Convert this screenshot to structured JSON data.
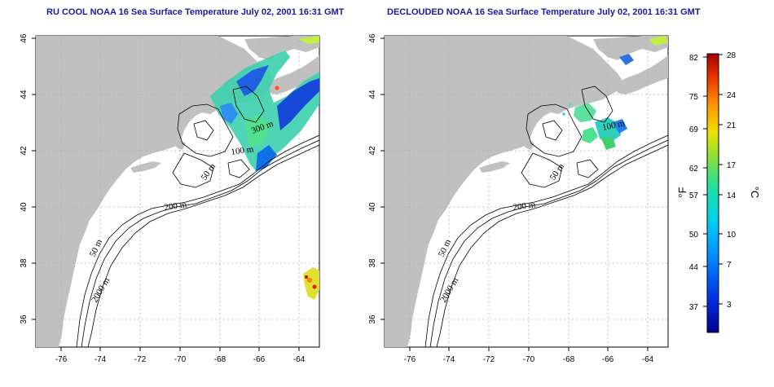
{
  "titles": {
    "left": "RU COOL NOAA 16 Sea Surface Temperature July 02, 2001 16:31 GMT",
    "right": "DECLOUDED NOAA 16 Sea Surface Temperature July 02, 2001 16:31 GMT"
  },
  "axes": {
    "lon_ticks": [
      "-76",
      "-74",
      "-72",
      "-70",
      "-68",
      "-66",
      "-64"
    ],
    "lat_ticks": [
      "36",
      "38",
      "40",
      "42",
      "44",
      "46"
    ],
    "lon_range": [
      -77.0,
      -63.0
    ],
    "lat_range": [
      35.0,
      46.0
    ]
  },
  "contour_labels": {
    "left": [
      "300 m",
      "100 m",
      "50 m",
      "200 m",
      "50 m",
      "2000 m"
    ],
    "right": [
      "100 m",
      "50 m",
      "200 m",
      "50 m",
      "2000 m"
    ]
  },
  "colorbar": {
    "fahrenheit_label": "°F",
    "celsius_label": "°C",
    "fahrenheit_ticks": [
      "82",
      "75",
      "69",
      "62",
      "57",
      "50",
      "44",
      "37"
    ],
    "celsius_ticks": [
      "28",
      "24",
      "21",
      "17",
      "14",
      "10",
      "7",
      "3"
    ],
    "celsius_range": [
      0,
      28
    ],
    "colors": [
      "#0000a0",
      "#0050ff",
      "#00b0ff",
      "#00e0c0",
      "#40e060",
      "#c0e000",
      "#ffd000",
      "#ff8000",
      "#e02000",
      "#a00000"
    ]
  },
  "colors": {
    "land": "#c0c0c0",
    "ocean": "#ffffff",
    "title": "#1a1a9e",
    "grid": "#b0b0b0"
  }
}
